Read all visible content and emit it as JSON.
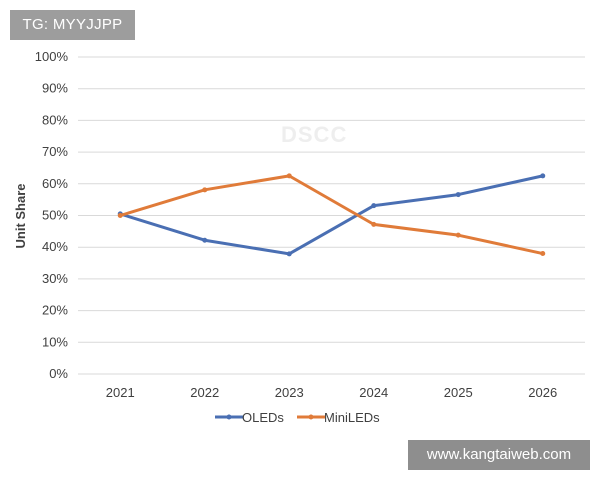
{
  "badges": {
    "tg": "TG: MYYJJPP",
    "site": "www.kangtaiweb.com",
    "watermark": "DSCC"
  },
  "colors": {
    "oleds": "#4a6fb3",
    "minileds": "#e07b39",
    "grid": "#d9d9d9",
    "axis_text": "#404040"
  },
  "chart_data": {
    "type": "line",
    "title": "",
    "xlabel": "",
    "ylabel": "Unit Share",
    "categories": [
      "2021",
      "2022",
      "2023",
      "2024",
      "2025",
      "2026"
    ],
    "ylim": [
      0,
      100
    ],
    "yticks": [
      "0%",
      "10%",
      "20%",
      "30%",
      "40%",
      "50%",
      "60%",
      "70%",
      "80%",
      "90%",
      "100%"
    ],
    "grid": true,
    "legend_position": "bottom",
    "series": [
      {
        "name": "OLEDs",
        "values": [
          50.5,
          42.2,
          37.9,
          53.1,
          56.6,
          62.5
        ]
      },
      {
        "name": "MiniLEDs",
        "values": [
          50.0,
          58.1,
          62.5,
          47.2,
          43.8,
          38.0
        ]
      }
    ]
  }
}
